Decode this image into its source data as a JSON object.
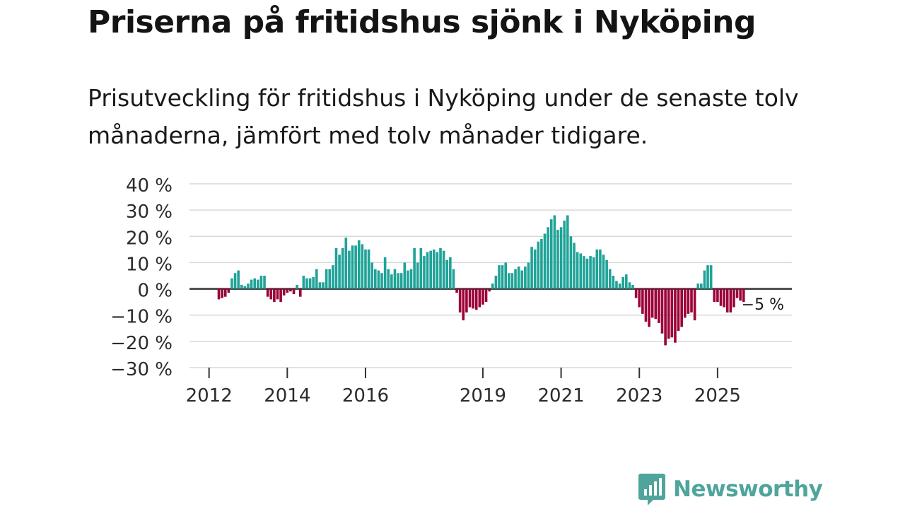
{
  "chart_data": {
    "type": "bar",
    "title": "Priserna på fritidshus sjönk i Nyköping",
    "subtitle": "Prisutveckling för fritidshus i Nyköping under de senaste tolv månaderna, jämfört med tolv månader tidigare.",
    "xlabel": "",
    "ylabel": "",
    "ylim": [
      -30,
      40
    ],
    "yticks": [
      40,
      30,
      20,
      10,
      0,
      -10,
      -20,
      -30
    ],
    "ytick_labels": [
      "40 %",
      "30 %",
      "20 %",
      "10 %",
      "0 %",
      "−10 %",
      "−20 %",
      "−30 %"
    ],
    "x_start": 2011.5,
    "x_end": 2026.9,
    "xticks": [
      2012,
      2014,
      2016,
      2019,
      2021,
      2023,
      2025
    ],
    "xtick_labels": [
      "2012",
      "2014",
      "2016",
      "2019",
      "2021",
      "2023",
      "2025"
    ],
    "grid": true,
    "positive_color": "#1fa398",
    "negative_color": "#9b0038",
    "series": [
      {
        "name": "2012",
        "start_month": 1,
        "values": [
          0,
          -4,
          -3.5,
          -3,
          -1.5,
          0,
          0,
          0,
          4,
          6,
          7,
          1.5,
          1,
          2,
          3.5,
          4,
          3.5
        ]
      },
      {
        "name": "2013",
        "start_month": 6,
        "values": [
          5,
          5,
          0,
          -3,
          -4,
          -5,
          -4,
          -5,
          -2.5,
          -1.5,
          -1,
          -2,
          0,
          1.5,
          -3,
          0,
          5,
          4,
          4,
          4.5,
          7.5,
          2.5,
          2.5,
          7.5,
          7.5,
          9,
          15.5,
          13,
          15.5,
          19.5,
          14.5,
          16.5,
          16.5,
          18.5,
          17,
          15,
          15,
          10,
          7.5,
          7,
          6,
          12,
          7.5,
          5.5,
          7.5,
          6,
          6,
          10,
          7,
          7.5,
          15.5,
          10,
          15.5,
          12.5,
          14,
          14.5,
          15,
          14,
          15.5,
          14.5,
          11,
          12,
          7.5,
          0,
          -1.5,
          0
        ]
      }
    ],
    "values": [
      -4,
      -3.5,
      -3,
      -1.5,
      4,
      6,
      7,
      1.5,
      1,
      2,
      3.5,
      4,
      3.5,
      5,
      5,
      -3,
      -4,
      -5,
      -4,
      -5,
      -2.5,
      -1.5,
      -1,
      -2,
      1.5,
      -3,
      5,
      4,
      4,
      4.5,
      7.5,
      2.5,
      2.5,
      7.5,
      7.5,
      9,
      15.5,
      13,
      15.5,
      19.5,
      14.5,
      16.5,
      16.5,
      18.5,
      17,
      15,
      15,
      10,
      7.5,
      7,
      6,
      12,
      7.5,
      5.5,
      7.5,
      6,
      6,
      10,
      7,
      7.5,
      15.5,
      10,
      15.5,
      12.5,
      14,
      14.5,
      15,
      14,
      15.5,
      14.5,
      11,
      12,
      7.5,
      -1.5,
      -9,
      -12,
      -9,
      -7,
      -7.5,
      -8,
      -7,
      -6,
      -5,
      -1,
      2,
      5,
      9,
      9,
      10,
      6,
      6,
      7.5,
      8.5,
      7,
      8.5,
      10,
      16,
      15,
      18,
      19,
      21,
      23.5,
      26.5,
      28,
      22.5,
      23.5,
      26,
      28,
      20,
      17.5,
      14,
      13.5,
      12.5,
      11.5,
      12.5,
      12,
      15,
      15,
      13,
      11,
      7.5,
      5,
      3,
      2,
      4.5,
      5.5,
      2.5,
      1.5,
      -3.5,
      -7,
      -9.5,
      -12.5,
      -14.5,
      -11,
      -11.5,
      -13,
      -17,
      -21.5,
      -19,
      -18.5,
      -20.5,
      -16,
      -14.5,
      -11,
      -9.5,
      -9,
      -12,
      2,
      2,
      7,
      9,
      9,
      -5,
      -5,
      -6.5,
      -7,
      -9,
      -9,
      -7,
      -3.5,
      -4.5,
      -5
    ],
    "annotation": {
      "label": "−5 %",
      "value": -5
    }
  },
  "brand": {
    "name": "Newsworthy",
    "icon": "newsworthy-logo-icon",
    "color": "#4fa59c"
  }
}
